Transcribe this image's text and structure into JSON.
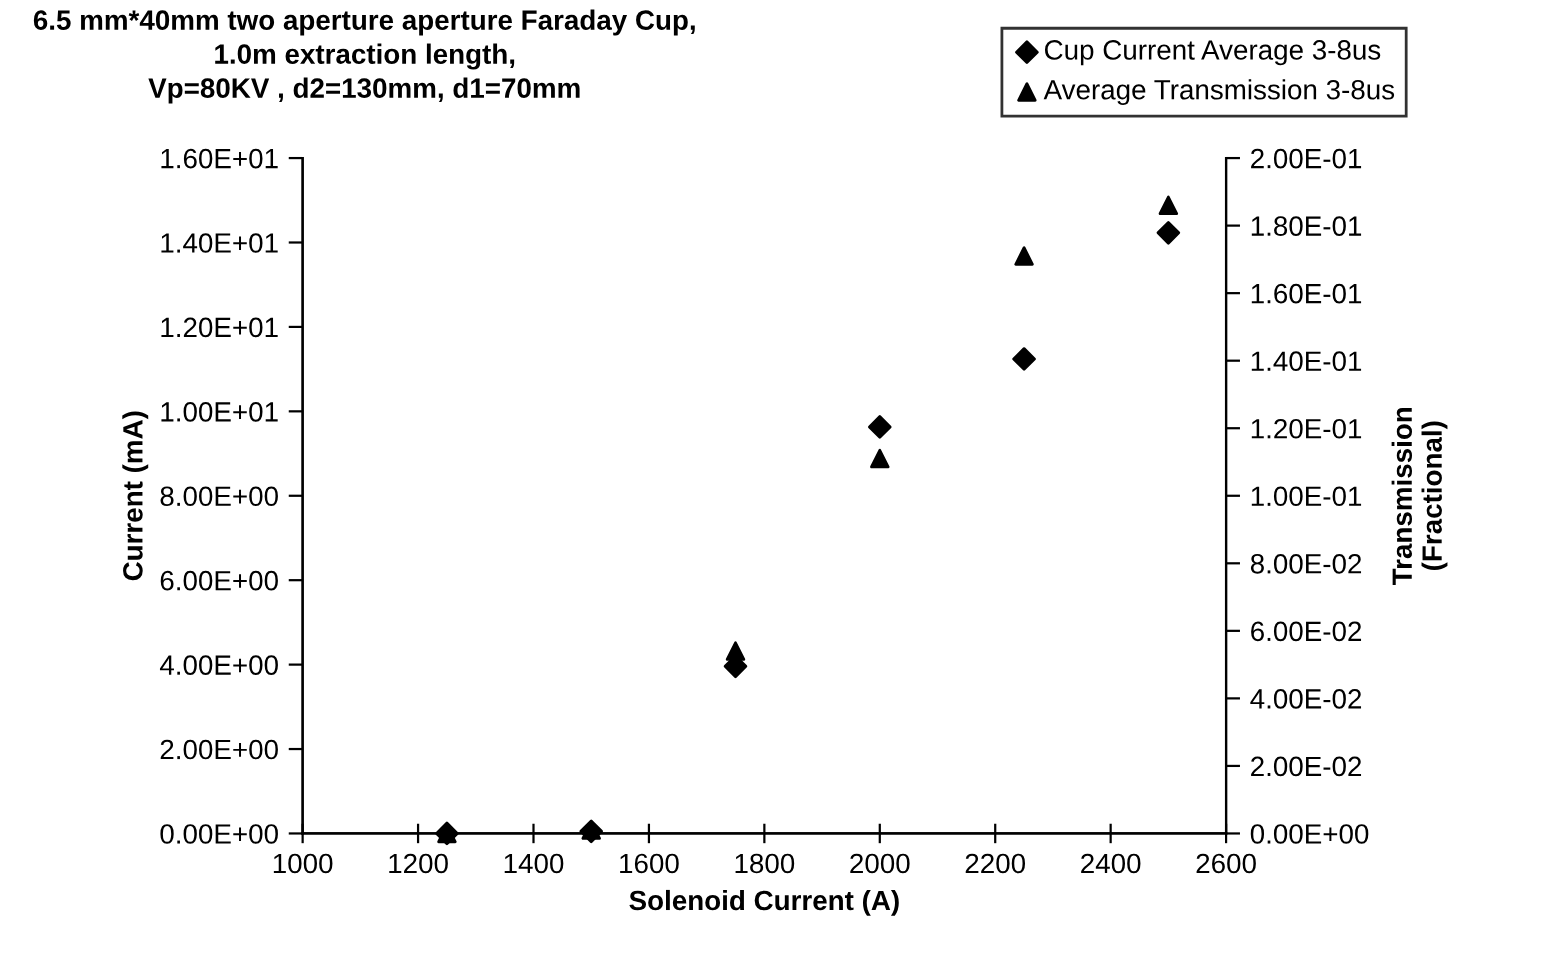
{
  "chart_data": {
    "type": "scatter",
    "title": "6.5 mm*40mm two aperture aperture Faraday Cup,\n1.0m extraction length,\nVp=80KV , d2=130mm, d1=70mm",
    "xlabel": "Solenoid Current (A)",
    "ylabel": "Current (mA)",
    "y2label": "Transmission\n(Fractional)",
    "x": [
      1250,
      1500,
      1750,
      2000,
      2250,
      2500
    ],
    "series": [
      {
        "name": "Cup Current Average 3-8us",
        "color": "#000000",
        "marker": "diamond",
        "values": [
          0.0,
          0.05,
          3.96,
          9.63,
          11.24,
          14.23
        ]
      },
      {
        "name": "Average Transmission 3-8us",
        "color": "#000000",
        "marker": "triangle",
        "axis": "y2",
        "values": [
          0.0,
          0.001,
          0.054,
          0.111,
          0.171,
          0.186
        ]
      }
    ],
    "xlim": [
      1000,
      2600
    ],
    "xticks": [
      1000,
      1200,
      1400,
      1600,
      1800,
      2000,
      2200,
      2400,
      2600
    ],
    "ylim": [
      0,
      16
    ],
    "yticks": [
      {
        "value": 0,
        "label": "0.00E+00"
      },
      {
        "value": 2,
        "label": "2.00E+00"
      },
      {
        "value": 4,
        "label": "4.00E+00"
      },
      {
        "value": 6,
        "label": "6.00E+00"
      },
      {
        "value": 8,
        "label": "8.00E+00"
      },
      {
        "value": 10,
        "label": "1.00E+01"
      },
      {
        "value": 12,
        "label": "1.20E+01"
      },
      {
        "value": 14,
        "label": "1.40E+01"
      },
      {
        "value": 16,
        "label": "1.60E+01"
      }
    ],
    "y2lim": [
      0,
      0.2
    ],
    "y2ticks": [
      {
        "value": 0,
        "label": "0.00E+00"
      },
      {
        "value": 0.02,
        "label": "2.00E-02"
      },
      {
        "value": 0.04,
        "label": "4.00E-02"
      },
      {
        "value": 0.06,
        "label": "6.00E-02"
      },
      {
        "value": 0.08,
        "label": "8.00E-02"
      },
      {
        "value": 0.1,
        "label": "1.00E-01"
      },
      {
        "value": 0.12,
        "label": "1.20E-01"
      },
      {
        "value": 0.14,
        "label": "1.40E-01"
      },
      {
        "value": 0.16,
        "label": "1.60E-01"
      },
      {
        "value": 0.18,
        "label": "1.80E-01"
      },
      {
        "value": 0.2,
        "label": "2.00E-01"
      }
    ],
    "grid": false,
    "legend": "top right"
  }
}
